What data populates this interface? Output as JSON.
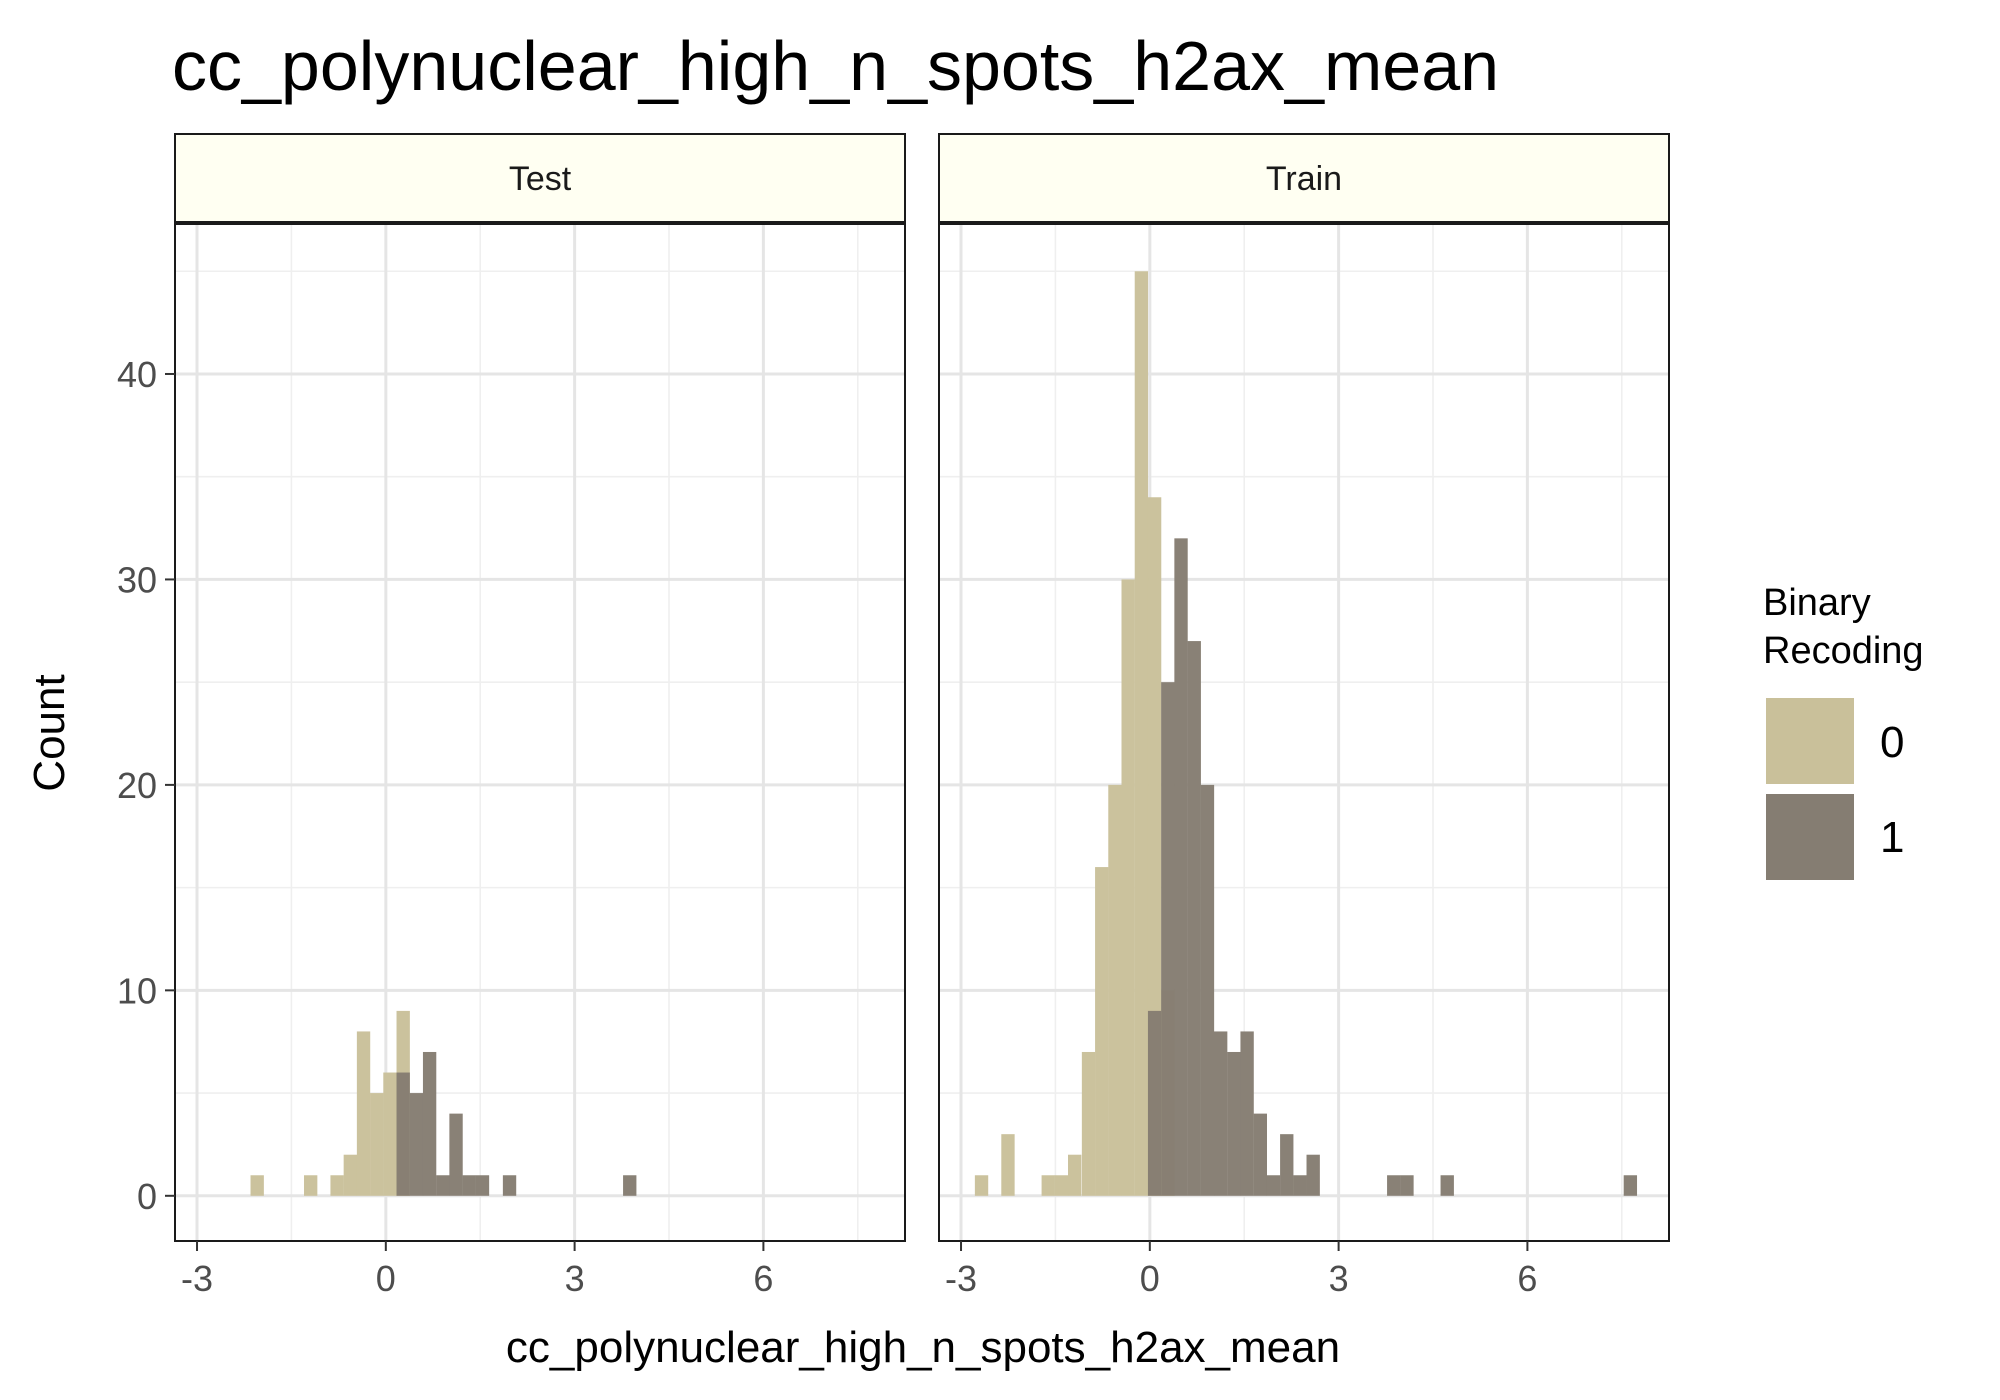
{
  "chart_data": {
    "type": "bar",
    "title": "cc_polynuclear_high_n_spots_h2ax_mean",
    "xlabel": "cc_polynuclear_high_n_spots_h2ax_mean",
    "ylabel": "Count",
    "xlim": [
      -3.35,
      8.25
    ],
    "ylim": [
      -2.2,
      47.3
    ],
    "x_ticks": [
      "-3",
      "0",
      "3",
      "6"
    ],
    "y_ticks": [
      "0",
      "10",
      "20",
      "30",
      "40"
    ],
    "bin_width": 0.212,
    "grid": true,
    "legend_position": "right",
    "legend": {
      "title_line1": "Binary",
      "title_line2": "Recoding",
      "items": [
        {
          "label": "0",
          "color": "#c9c09a"
        },
        {
          "label": "1",
          "color": "#857d72"
        }
      ]
    },
    "colors": {
      "0": "#c9c09a",
      "1": "#857d72",
      "strip_fill": "#fffff2"
    },
    "panels": [
      {
        "label": "Test",
        "series": [
          {
            "name": "0",
            "bins": [
              [
                -2.15,
                1
              ],
              [
                -1.3,
                1
              ],
              [
                -0.88,
                1
              ],
              [
                -0.67,
                2
              ],
              [
                -0.46,
                8
              ],
              [
                -0.25,
                5
              ],
              [
                -0.04,
                6
              ],
              [
                0.17,
                9
              ]
            ]
          },
          {
            "name": "1",
            "bins": [
              [
                0.17,
                6
              ],
              [
                0.38,
                5
              ],
              [
                0.59,
                7
              ],
              [
                0.8,
                1
              ],
              [
                1.01,
                4
              ],
              [
                1.22,
                1
              ],
              [
                1.43,
                1
              ],
              [
                1.86,
                1
              ],
              [
                3.77,
                1
              ]
            ]
          }
        ]
      },
      {
        "label": "Train",
        "series": [
          {
            "name": "0",
            "bins": [
              [
                -2.78,
                1
              ],
              [
                -2.36,
                3
              ],
              [
                -1.72,
                1
              ],
              [
                -1.51,
                1
              ],
              [
                -1.3,
                2
              ],
              [
                -1.08,
                7
              ],
              [
                -0.87,
                16
              ],
              [
                -0.66,
                20
              ],
              [
                -0.45,
                30
              ],
              [
                -0.24,
                45
              ],
              [
                -0.03,
                34
              ],
              [
                0.18,
                10
              ]
            ]
          },
          {
            "name": "1",
            "bins": [
              [
                -0.03,
                9
              ],
              [
                0.18,
                25
              ],
              [
                0.39,
                32
              ],
              [
                0.6,
                27
              ],
              [
                0.81,
                20
              ],
              [
                1.02,
                8
              ],
              [
                1.23,
                7
              ],
              [
                1.44,
                8
              ],
              [
                1.65,
                4
              ],
              [
                1.86,
                1
              ],
              [
                2.07,
                3
              ],
              [
                2.28,
                1
              ],
              [
                2.49,
                2
              ],
              [
                3.77,
                1
              ],
              [
                3.98,
                1
              ],
              [
                4.62,
                1
              ],
              [
                7.53,
                1
              ]
            ]
          }
        ]
      }
    ]
  }
}
